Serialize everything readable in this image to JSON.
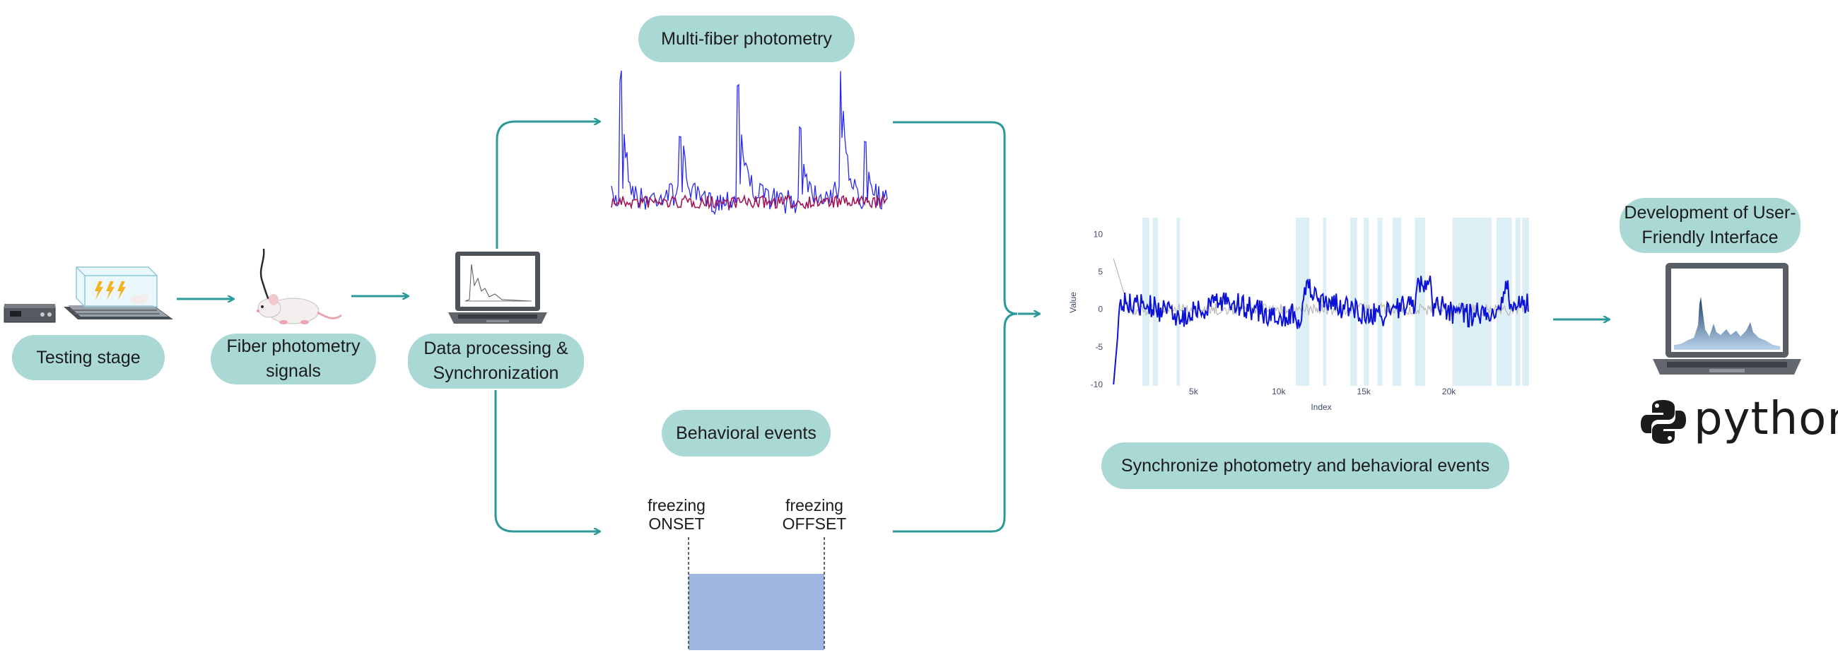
{
  "pills": {
    "testing_stage": "Testing stage",
    "fiber_line1": "Fiber photometry",
    "fiber_line2": "signals",
    "processing_line1": "Data processing &",
    "processing_line2": "Synchronization",
    "multi_fiber": "Multi-fiber photometry",
    "behavioral": "Behavioral events",
    "synchronize": "Synchronize photometry and behavioral events",
    "development_line1": "Development of User-",
    "development_line2": "Friendly Interface"
  },
  "events": {
    "onset_line1": "freezing",
    "onset_line2": "ONSET",
    "offset_line1": "freezing",
    "offset_line2": "OFFSET"
  },
  "python_label": "python",
  "colors": {
    "teal_arrow": "#2b9a98",
    "pill_fill": "#a9d8d5",
    "signal_blue": "#2a2ae6",
    "signal_red": "#a01656",
    "plot_blue": "#0b12d6",
    "event_shade": "#dceff5",
    "freeze_box": "#9fb6e2"
  },
  "chart_data": {
    "type": "line",
    "xlabel": "Index",
    "ylabel": "Value",
    "x_ticks": [
      "5k",
      "10k",
      "15k",
      "20k"
    ],
    "y_ticks": [
      "10",
      "5",
      "0",
      "-5",
      "-10"
    ],
    "xlim": [
      0,
      25000
    ],
    "ylim": [
      -10,
      12
    ],
    "event_bands": [
      [
        2000,
        2400
      ],
      [
        2600,
        2900
      ],
      [
        4000,
        4200
      ],
      [
        11000,
        11800
      ],
      [
        12600,
        12800
      ],
      [
        14200,
        14600
      ],
      [
        15000,
        15300
      ],
      [
        15800,
        16100
      ],
      [
        16700,
        17200
      ],
      [
        18000,
        18600
      ],
      [
        20200,
        22500
      ],
      [
        22800,
        23700
      ],
      [
        23900,
        24200
      ],
      [
        24300,
        24700
      ]
    ]
  }
}
